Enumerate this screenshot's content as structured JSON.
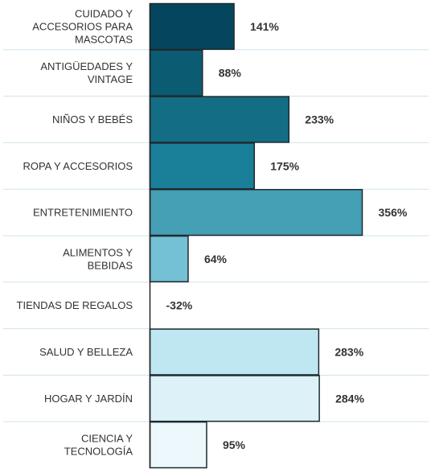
{
  "chart_data": {
    "type": "bar",
    "orientation": "horizontal",
    "categories": [
      [
        "CUIDADO Y",
        "ACCESORIOS PARA",
        "MASCOTAS"
      ],
      [
        "ANTIGÜEDADES Y",
        "VINTAGE"
      ],
      [
        "NIÑOS Y BEBÉS"
      ],
      [
        "ROPA Y ACCESORIOS"
      ],
      [
        "ENTRETENIMIENTO"
      ],
      [
        "ALIMENTOS Y",
        "BEBIDAS"
      ],
      [
        "TIENDAS DE REGALOS"
      ],
      [
        "SALUD Y BELLEZA"
      ],
      [
        "HOGAR Y JARDÍN"
      ],
      [
        "CIENCIA Y",
        "TECNOLOGÍA"
      ]
    ],
    "values": [
      141,
      88,
      233,
      175,
      356,
      64,
      -32,
      283,
      284,
      95
    ],
    "value_labels": [
      "141%",
      "88%",
      "233%",
      "175%",
      "356%",
      "64%",
      "-32%",
      "283%",
      "284%",
      "95%"
    ],
    "colors": [
      "#05465e",
      "#0b5c72",
      "#136d84",
      "#1a7f98",
      "#459fb5",
      "#74c0d4",
      "#9fd6e4",
      "#bfe7f1",
      "#dcf2f8",
      "#edf8fc"
    ],
    "grid": true,
    "legend": "none"
  }
}
